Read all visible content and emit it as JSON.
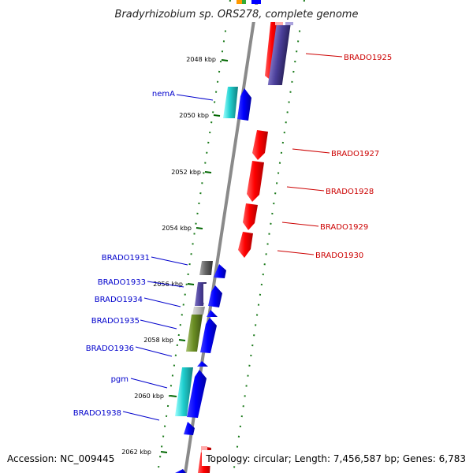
{
  "title": "Bradyrhizobium sp. ORS278, complete genome",
  "footer": {
    "accession": "Accession: NC_009445",
    "topology": "Topology: circular; Length: 7,456,587 bp; Genes: 6,783"
  },
  "colors": {
    "forward_label": "#0000cc",
    "reverse_label": "#cc0000",
    "tick": "#006600",
    "backbone": "#888888"
  },
  "ticks": [
    "2048 kbp",
    "2050 kbp",
    "2052 kbp",
    "2054 kbp",
    "2056 kbp",
    "2058 kbp",
    "2060 kbp",
    "2062 kbp"
  ],
  "forward_labels": [
    "nemA",
    "BRADO1931",
    "BRADO1933",
    "BRADO1934",
    "BRADO1935",
    "BRADO1936",
    "pgm",
    "BRADO1938"
  ],
  "reverse_labels": [
    "BRADO1925",
    "BRADO1927",
    "BRADO1928",
    "BRADO1929",
    "BRADO1930"
  ]
}
